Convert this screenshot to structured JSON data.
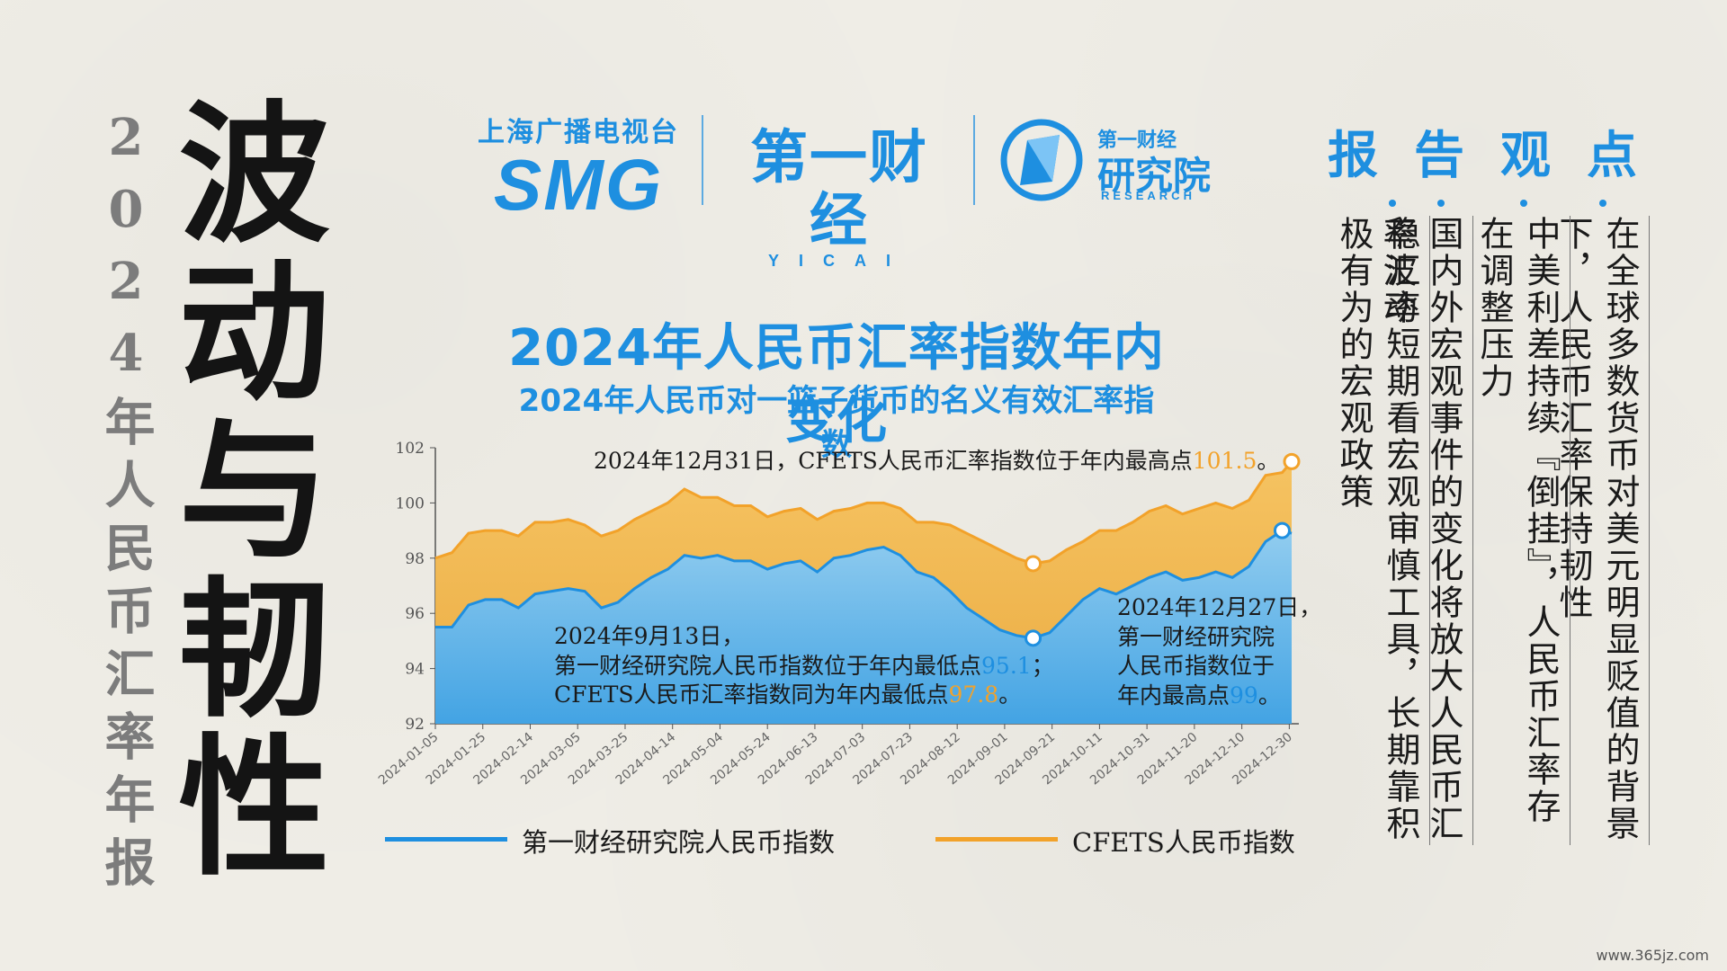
{
  "subtitle_vertical": "2024年人民币汇率年报",
  "main_title_vertical": "波动与韧性",
  "logos": {
    "smg_cn": "上海广播电视台",
    "smg_en": "SMG",
    "yicai_cn": "第一财经",
    "yicai_en": "YICAI",
    "research_top": "第一财经",
    "research_cn": "研究院",
    "research_en": "RESEARCH"
  },
  "colors": {
    "blue": "#1e8fe0",
    "orange": "#f2a22a",
    "bg": "#efede6"
  },
  "report": {
    "heading": [
      "报",
      "告",
      "观",
      "点"
    ],
    "points": [
      "在全球多数货币对美元明显贬值的背景下，人民币汇率保持韧性",
      "中美利差持续『倒挂』，人民币汇率存在调整压力",
      "国内外宏观事件的变化将放大人民币汇率波动",
      "稳汇率短期看宏观审慎工具，长期靠积极有为的宏观政策"
    ]
  },
  "annotations": {
    "top": {
      "prefix": "2024年12月31日，CFETS人民币汇率指数位于年内最高点",
      "value": "101.5",
      "suffix": "。"
    },
    "low": {
      "line1": "2024年9月13日，",
      "line2_prefix": "第一财经研究院人民币指数位于年内最低点",
      "line2_value": "95.1",
      "line2_suffix": "；",
      "line3_prefix": "CFETS人民币汇率指数同为年内最低点",
      "line3_value": "97.8",
      "line3_suffix": "。"
    },
    "high_yicai": {
      "line1": "2024年12月27日，",
      "line2": "第一财经研究院",
      "line3": "人民币指数位于",
      "line4_prefix": "年内最高点",
      "line4_value": "99",
      "line4_suffix": "。"
    }
  },
  "watermark": "www.365jz.com",
  "chart_data": {
    "type": "area",
    "title": "2024年人民币汇率指数年内变化",
    "subtitle": "2024年人民币对一篮子货币的名义有效汇率指数",
    "ylim": [
      92,
      102
    ],
    "yticks": [
      92,
      94,
      96,
      98,
      100,
      102
    ],
    "x_range": [
      "2024-01-05",
      "2024-12-31"
    ],
    "xtick_labels": [
      "2024-01-05",
      "2024-01-25",
      "2024-02-14",
      "2024-03-05",
      "2024-03-25",
      "2024-04-14",
      "2024-05-04",
      "2024-05-24",
      "2024-06-13",
      "2024-07-03",
      "2024-07-23",
      "2024-08-12",
      "2024-09-01",
      "2024-09-21",
      "2024-10-11",
      "2024-10-31",
      "2024-11-20",
      "2024-12-10",
      "2024-12-30"
    ],
    "legend_position": "bottom",
    "series": [
      {
        "name": "第一财经研究院人民币指数",
        "color": "#1e8fe0",
        "points": [
          [
            "2024-01-05",
            95.5
          ],
          [
            "2024-01-12",
            95.5
          ],
          [
            "2024-01-19",
            96.3
          ],
          [
            "2024-01-26",
            96.5
          ],
          [
            "2024-02-02",
            96.5
          ],
          [
            "2024-02-09",
            96.2
          ],
          [
            "2024-02-16",
            96.7
          ],
          [
            "2024-02-23",
            96.8
          ],
          [
            "2024-03-01",
            96.9
          ],
          [
            "2024-03-08",
            96.8
          ],
          [
            "2024-03-15",
            96.2
          ],
          [
            "2024-03-22",
            96.4
          ],
          [
            "2024-03-29",
            96.9
          ],
          [
            "2024-04-05",
            97.3
          ],
          [
            "2024-04-12",
            97.6
          ],
          [
            "2024-04-19",
            98.1
          ],
          [
            "2024-04-26",
            98.0
          ],
          [
            "2024-05-03",
            98.1
          ],
          [
            "2024-05-10",
            97.9
          ],
          [
            "2024-05-17",
            97.9
          ],
          [
            "2024-05-24",
            97.6
          ],
          [
            "2024-05-31",
            97.8
          ],
          [
            "2024-06-07",
            97.9
          ],
          [
            "2024-06-14",
            97.5
          ],
          [
            "2024-06-21",
            98.0
          ],
          [
            "2024-06-28",
            98.1
          ],
          [
            "2024-07-05",
            98.3
          ],
          [
            "2024-07-12",
            98.4
          ],
          [
            "2024-07-19",
            98.1
          ],
          [
            "2024-07-26",
            97.5
          ],
          [
            "2024-08-02",
            97.3
          ],
          [
            "2024-08-09",
            96.8
          ],
          [
            "2024-08-16",
            96.2
          ],
          [
            "2024-08-23",
            95.8
          ],
          [
            "2024-08-30",
            95.4
          ],
          [
            "2024-09-06",
            95.2
          ],
          [
            "2024-09-13",
            95.1
          ],
          [
            "2024-09-20",
            95.3
          ],
          [
            "2024-09-27",
            95.9
          ],
          [
            "2024-10-04",
            96.5
          ],
          [
            "2024-10-11",
            96.9
          ],
          [
            "2024-10-18",
            96.7
          ],
          [
            "2024-10-25",
            97.0
          ],
          [
            "2024-11-01",
            97.3
          ],
          [
            "2024-11-08",
            97.5
          ],
          [
            "2024-11-15",
            97.2
          ],
          [
            "2024-11-22",
            97.3
          ],
          [
            "2024-11-29",
            97.5
          ],
          [
            "2024-12-06",
            97.3
          ],
          [
            "2024-12-13",
            97.7
          ],
          [
            "2024-12-20",
            98.6
          ],
          [
            "2024-12-27",
            99.0
          ],
          [
            "2024-12-31",
            98.9
          ]
        ]
      },
      {
        "name": "CFETS人民币指数",
        "color": "#f2a22a",
        "points": [
          [
            "2024-01-05",
            98.0
          ],
          [
            "2024-01-12",
            98.2
          ],
          [
            "2024-01-19",
            98.9
          ],
          [
            "2024-01-26",
            99.0
          ],
          [
            "2024-02-02",
            99.0
          ],
          [
            "2024-02-09",
            98.8
          ],
          [
            "2024-02-16",
            99.3
          ],
          [
            "2024-02-23",
            99.3
          ],
          [
            "2024-03-01",
            99.4
          ],
          [
            "2024-03-08",
            99.2
          ],
          [
            "2024-03-15",
            98.8
          ],
          [
            "2024-03-22",
            99.0
          ],
          [
            "2024-03-29",
            99.4
          ],
          [
            "2024-04-05",
            99.7
          ],
          [
            "2024-04-12",
            100.0
          ],
          [
            "2024-04-19",
            100.5
          ],
          [
            "2024-04-26",
            100.2
          ],
          [
            "2024-05-03",
            100.2
          ],
          [
            "2024-05-10",
            99.9
          ],
          [
            "2024-05-17",
            99.9
          ],
          [
            "2024-05-24",
            99.5
          ],
          [
            "2024-05-31",
            99.7
          ],
          [
            "2024-06-07",
            99.8
          ],
          [
            "2024-06-14",
            99.4
          ],
          [
            "2024-06-21",
            99.7
          ],
          [
            "2024-06-28",
            99.8
          ],
          [
            "2024-07-05",
            100.0
          ],
          [
            "2024-07-12",
            100.0
          ],
          [
            "2024-07-19",
            99.8
          ],
          [
            "2024-07-26",
            99.3
          ],
          [
            "2024-08-02",
            99.3
          ],
          [
            "2024-08-09",
            99.2
          ],
          [
            "2024-08-16",
            98.9
          ],
          [
            "2024-08-23",
            98.6
          ],
          [
            "2024-08-30",
            98.3
          ],
          [
            "2024-09-06",
            98.0
          ],
          [
            "2024-09-13",
            97.8
          ],
          [
            "2024-09-20",
            97.9
          ],
          [
            "2024-09-27",
            98.3
          ],
          [
            "2024-10-04",
            98.6
          ],
          [
            "2024-10-11",
            99.0
          ],
          [
            "2024-10-18",
            99.0
          ],
          [
            "2024-10-25",
            99.3
          ],
          [
            "2024-11-01",
            99.7
          ],
          [
            "2024-11-08",
            99.9
          ],
          [
            "2024-11-15",
            99.6
          ],
          [
            "2024-11-22",
            99.8
          ],
          [
            "2024-11-29",
            100.0
          ],
          [
            "2024-12-06",
            99.8
          ],
          [
            "2024-12-13",
            100.1
          ],
          [
            "2024-12-20",
            101.0
          ],
          [
            "2024-12-27",
            101.1
          ],
          [
            "2024-12-31",
            101.5
          ]
        ]
      }
    ],
    "markers": [
      {
        "series": 0,
        "date": "2024-09-13",
        "value": 95.1
      },
      {
        "series": 1,
        "date": "2024-09-13",
        "value": 97.8
      },
      {
        "series": 0,
        "date": "2024-12-27",
        "value": 99.0
      },
      {
        "series": 1,
        "date": "2024-12-31",
        "value": 101.5
      }
    ]
  }
}
